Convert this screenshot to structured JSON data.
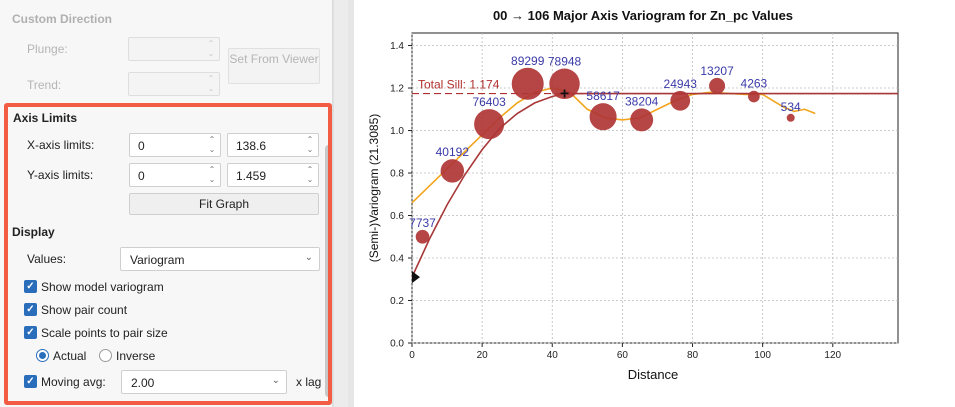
{
  "panel": {
    "custom_direction": {
      "title": "Custom Direction",
      "plunge_label": "Plunge:",
      "trend_label": "Trend:",
      "set_from_viewer": "Set From Viewer"
    },
    "axis_limits": {
      "title": "Axis Limits",
      "x_label": "X-axis limits:",
      "x_min": "0",
      "x_max": "138.6",
      "y_label": "Y-axis limits:",
      "y_min": "0",
      "y_max": "1.459",
      "fit_graph": "Fit Graph"
    },
    "display": {
      "title": "Display",
      "values_label": "Values:",
      "values_selected": "Variogram",
      "show_model": "Show model variogram",
      "show_pair_count": "Show pair count",
      "scale_points": "Scale points to pair size",
      "actual": "Actual",
      "inverse": "Inverse",
      "scale_mode": "Actual",
      "moving_avg_label": "Moving avg:",
      "moving_avg_value": "2.00",
      "x_lag": "x lag"
    },
    "colors": {
      "highlight": "#f25c42",
      "check": "#2a6ebb"
    }
  },
  "chart_data": {
    "type": "scatter",
    "title": "00 → 106 Major Axis Variogram for Zn_pc Values",
    "xlabel": "Distance",
    "ylabel": "(Semi-)Variogram (21.3085)",
    "xlim": [
      0,
      138.6
    ],
    "ylim": [
      0,
      1.459
    ],
    "xticks": [
      "0",
      "20",
      "40",
      "60",
      "80",
      "100",
      "120"
    ],
    "yticks": [
      "0.0",
      "0.2",
      "0.4",
      "0.6",
      "0.8",
      "1.0",
      "1.2",
      "1.4"
    ],
    "grid": true,
    "sill": {
      "label": "Total Sill: 1.174",
      "value": 1.174,
      "color": "#b03030"
    },
    "points": {
      "color": "#b03535",
      "x": [
        3,
        11.5,
        22,
        33,
        43.5,
        54.5,
        65.5,
        76.5,
        87,
        97.5,
        108
      ],
      "y": [
        0.5,
        0.81,
        1.03,
        1.22,
        1.22,
        1.065,
        1.05,
        1.14,
        1.21,
        1.16,
        1.06
      ],
      "pair_count_labels": [
        "7737",
        "40192",
        "76403",
        "89299",
        "78948",
        "58617",
        "38204",
        "24943",
        "13207",
        "4263",
        "534"
      ]
    },
    "model": {
      "color": "#a83838",
      "x": [
        0,
        5,
        10,
        15,
        20,
        25,
        30,
        35,
        40,
        43.5,
        60,
        80,
        100,
        120,
        138.6
      ],
      "y": [
        0.31,
        0.49,
        0.65,
        0.79,
        0.91,
        1.01,
        1.08,
        1.13,
        1.16,
        1.174,
        1.174,
        1.174,
        1.174,
        1.174,
        1.174
      ]
    },
    "moving_avg": {
      "color": "#f2a51c",
      "x": [
        0,
        5,
        10,
        15,
        20,
        25,
        30,
        35,
        40,
        45,
        50,
        55,
        60,
        65,
        70,
        75,
        80,
        85,
        90,
        95,
        100,
        103,
        106,
        109,
        112,
        115
      ],
      "y": [
        0.66,
        0.74,
        0.82,
        0.9,
        0.98,
        1.06,
        1.13,
        1.18,
        1.2,
        1.18,
        1.1,
        1.06,
        1.05,
        1.06,
        1.1,
        1.14,
        1.17,
        1.18,
        1.175,
        1.17,
        1.17,
        1.14,
        1.11,
        1.09,
        1.1,
        1.08
      ]
    },
    "marker_label": "+"
  }
}
